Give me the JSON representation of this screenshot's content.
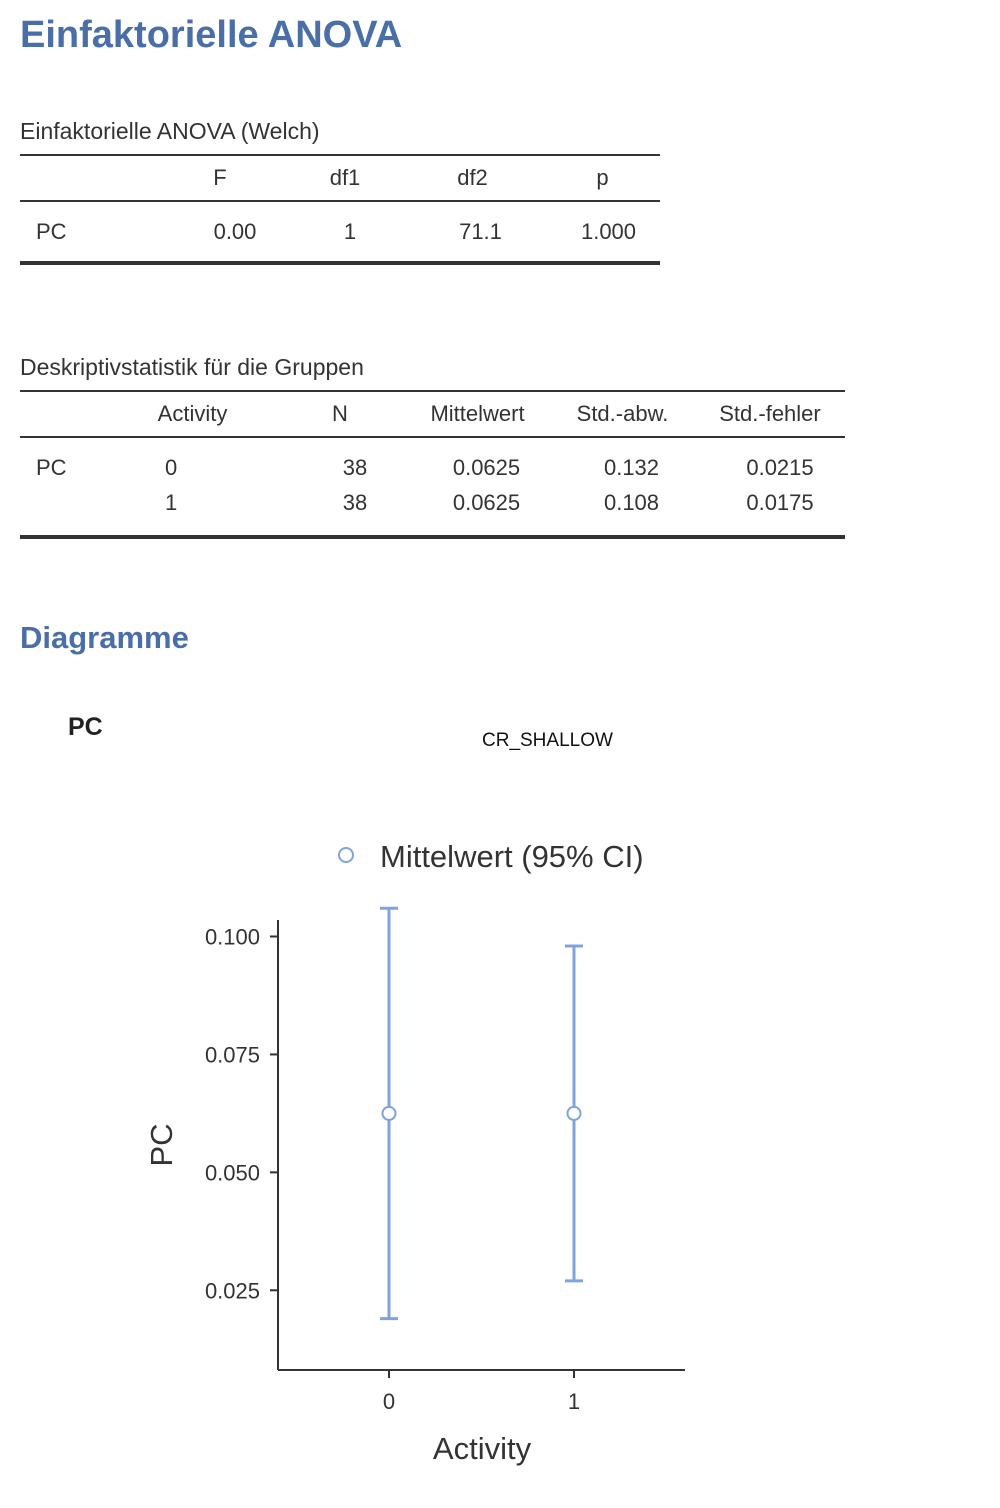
{
  "page": {
    "title": "Einfaktorielle ANOVA"
  },
  "welch_table": {
    "caption": "Einfaktorielle ANOVA (Welch)",
    "headers": [
      "",
      "F",
      "df1",
      "df2",
      "p"
    ],
    "rows": [
      [
        "PC",
        "0.00",
        "1",
        "71.1",
        "1.000"
      ]
    ]
  },
  "desc_table": {
    "caption": "Deskriptivstatistik für die Gruppen",
    "headers": [
      "",
      "Activity",
      "N",
      "Mittelwert",
      "Std.-abw.",
      "Std.-fehler"
    ],
    "rows": [
      [
        "PC",
        "0",
        "38",
        "0.0625",
        "0.132",
        "0.0215"
      ],
      [
        "",
        "1",
        "38",
        "0.0625",
        "0.108",
        "0.0175"
      ]
    ]
  },
  "plots": {
    "heading": "Diagramme",
    "plot_title": "PC",
    "plot_subtitle": "CR_SHALLOW"
  },
  "colors": {
    "accent": "#4a6fa8",
    "series": "#7fa3dd",
    "text": "#333333"
  },
  "chart_data": {
    "type": "scatter",
    "legend_label": "Mittelwert (95% CI)",
    "legend_position": "top",
    "xlabel": "Activity",
    "ylabel": "PC",
    "categories": [
      "0",
      "1"
    ],
    "means": [
      0.0625,
      0.0625
    ],
    "ci_lower": [
      0.019,
      0.027
    ],
    "ci_upper": [
      0.106,
      0.098
    ],
    "yticks": [
      0.025,
      0.05,
      0.075,
      0.1
    ],
    "ytick_labels": [
      "0.025",
      "0.050",
      "0.075",
      "0.100"
    ],
    "ylim": [
      0.0081,
      0.1035
    ],
    "grid": false
  }
}
